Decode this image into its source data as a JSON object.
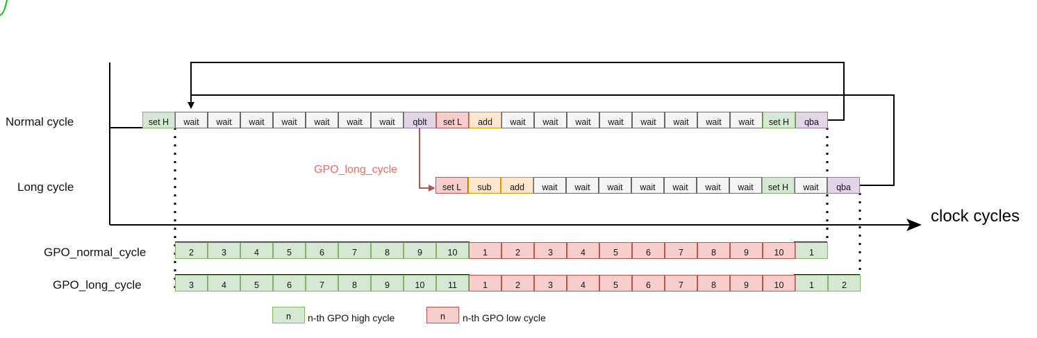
{
  "row_labels": {
    "normal_cycle": "Normal cycle",
    "long_cycle": "Long cycle",
    "gpo_normal_cycle": "GPO_normal_cycle",
    "gpo_long_cycle": "GPO_long_cycle"
  },
  "axis_label": "clock cycles",
  "branch_label": "GPO_long_cycle",
  "normal_cycle_instructions": [
    {
      "label": "set H",
      "kind": "high"
    },
    {
      "label": "wait",
      "kind": "wait"
    },
    {
      "label": "wait",
      "kind": "wait"
    },
    {
      "label": "wait",
      "kind": "wait"
    },
    {
      "label": "wait",
      "kind": "wait"
    },
    {
      "label": "wait",
      "kind": "wait"
    },
    {
      "label": "wait",
      "kind": "wait"
    },
    {
      "label": "wait",
      "kind": "wait"
    },
    {
      "label": "qblt",
      "kind": "branch"
    },
    {
      "label": "set L",
      "kind": "low"
    },
    {
      "label": "add",
      "kind": "arith"
    },
    {
      "label": "wait",
      "kind": "wait"
    },
    {
      "label": "wait",
      "kind": "wait"
    },
    {
      "label": "wait",
      "kind": "wait"
    },
    {
      "label": "wait",
      "kind": "wait"
    },
    {
      "label": "wait",
      "kind": "wait"
    },
    {
      "label": "wait",
      "kind": "wait"
    },
    {
      "label": "wait",
      "kind": "wait"
    },
    {
      "label": "wait",
      "kind": "wait"
    },
    {
      "label": "set H",
      "kind": "high"
    },
    {
      "label": "qba",
      "kind": "branch"
    }
  ],
  "long_cycle_instructions": [
    {
      "label": "set L",
      "kind": "low"
    },
    {
      "label": "sub",
      "kind": "arith"
    },
    {
      "label": "add",
      "kind": "arith"
    },
    {
      "label": "wait",
      "kind": "wait"
    },
    {
      "label": "wait",
      "kind": "wait"
    },
    {
      "label": "wait",
      "kind": "wait"
    },
    {
      "label": "wait",
      "kind": "wait"
    },
    {
      "label": "wait",
      "kind": "wait"
    },
    {
      "label": "wait",
      "kind": "wait"
    },
    {
      "label": "wait",
      "kind": "wait"
    },
    {
      "label": "set H",
      "kind": "high"
    },
    {
      "label": "wait",
      "kind": "wait"
    },
    {
      "label": "qba",
      "kind": "branch"
    }
  ],
  "gpo_normal_cycle": [
    {
      "label": "2",
      "level": "high"
    },
    {
      "label": "3",
      "level": "high"
    },
    {
      "label": "4",
      "level": "high"
    },
    {
      "label": "5",
      "level": "high"
    },
    {
      "label": "6",
      "level": "high"
    },
    {
      "label": "7",
      "level": "high"
    },
    {
      "label": "8",
      "level": "high"
    },
    {
      "label": "9",
      "level": "high"
    },
    {
      "label": "10",
      "level": "high"
    },
    {
      "label": "1",
      "level": "low"
    },
    {
      "label": "2",
      "level": "low"
    },
    {
      "label": "3",
      "level": "low"
    },
    {
      "label": "4",
      "level": "low"
    },
    {
      "label": "5",
      "level": "low"
    },
    {
      "label": "6",
      "level": "low"
    },
    {
      "label": "7",
      "level": "low"
    },
    {
      "label": "8",
      "level": "low"
    },
    {
      "label": "9",
      "level": "low"
    },
    {
      "label": "10",
      "level": "low"
    },
    {
      "label": "1",
      "level": "high"
    }
  ],
  "gpo_long_cycle": [
    {
      "label": "3",
      "level": "high"
    },
    {
      "label": "4",
      "level": "high"
    },
    {
      "label": "5",
      "level": "high"
    },
    {
      "label": "6",
      "level": "high"
    },
    {
      "label": "7",
      "level": "high"
    },
    {
      "label": "8",
      "level": "high"
    },
    {
      "label": "9",
      "level": "high"
    },
    {
      "label": "10",
      "level": "high"
    },
    {
      "label": "11",
      "level": "high"
    },
    {
      "label": "1",
      "level": "low"
    },
    {
      "label": "2",
      "level": "low"
    },
    {
      "label": "3",
      "level": "low"
    },
    {
      "label": "4",
      "level": "low"
    },
    {
      "label": "5",
      "level": "low"
    },
    {
      "label": "6",
      "level": "low"
    },
    {
      "label": "7",
      "level": "low"
    },
    {
      "label": "8",
      "level": "low"
    },
    {
      "label": "9",
      "level": "low"
    },
    {
      "label": "10",
      "level": "low"
    },
    {
      "label": "1",
      "level": "high"
    },
    {
      "label": "2",
      "level": "high"
    }
  ],
  "legend": {
    "high": {
      "box": "n",
      "text": "n-th GPO high cycle"
    },
    "low": {
      "box": "n",
      "text": "n-th GPO low cycle"
    }
  },
  "colors": {
    "high_fill": "#d5e8d4",
    "high_stroke": "#82b366",
    "low_fill": "#f8cecc",
    "low_stroke": "#b85450",
    "wait_fill": "#f5f5f5",
    "wait_stroke": "#666666",
    "arith_fill": "#ffe6cc",
    "arith_stroke": "#d79b00",
    "branch_fill": "#e1d5e7",
    "branch_stroke": "#9673a6",
    "branch_arrow": "#b85450",
    "branch_label": "#ea6b66"
  }
}
